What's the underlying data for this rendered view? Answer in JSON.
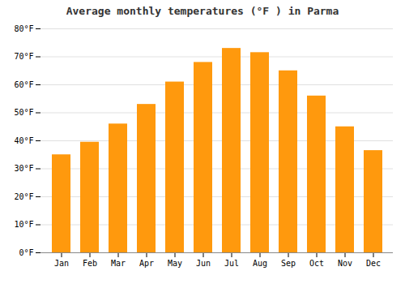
{
  "chart_data": {
    "type": "bar",
    "title": "Average monthly temperatures (°F ) in Parma",
    "categories": [
      "Jan",
      "Feb",
      "Mar",
      "Apr",
      "May",
      "Jun",
      "Jul",
      "Aug",
      "Sep",
      "Oct",
      "Nov",
      "Dec"
    ],
    "values": [
      35,
      39.5,
      46,
      53,
      61,
      68,
      73,
      71.5,
      65,
      56,
      45,
      36.5
    ],
    "color": "#ff990d",
    "ylim": [
      0,
      80
    ],
    "yticks": [
      {
        "value": 0,
        "label": "0°F"
      },
      {
        "value": 10,
        "label": "10°F"
      },
      {
        "value": 20,
        "label": "20°F"
      },
      {
        "value": 30,
        "label": "30°F"
      },
      {
        "value": 40,
        "label": "40°F"
      },
      {
        "value": 50,
        "label": "50°F"
      },
      {
        "value": 60,
        "label": "60°F"
      },
      {
        "value": 70,
        "label": "70°F"
      },
      {
        "value": 80,
        "label": "80°F"
      }
    ],
    "grid": true
  }
}
